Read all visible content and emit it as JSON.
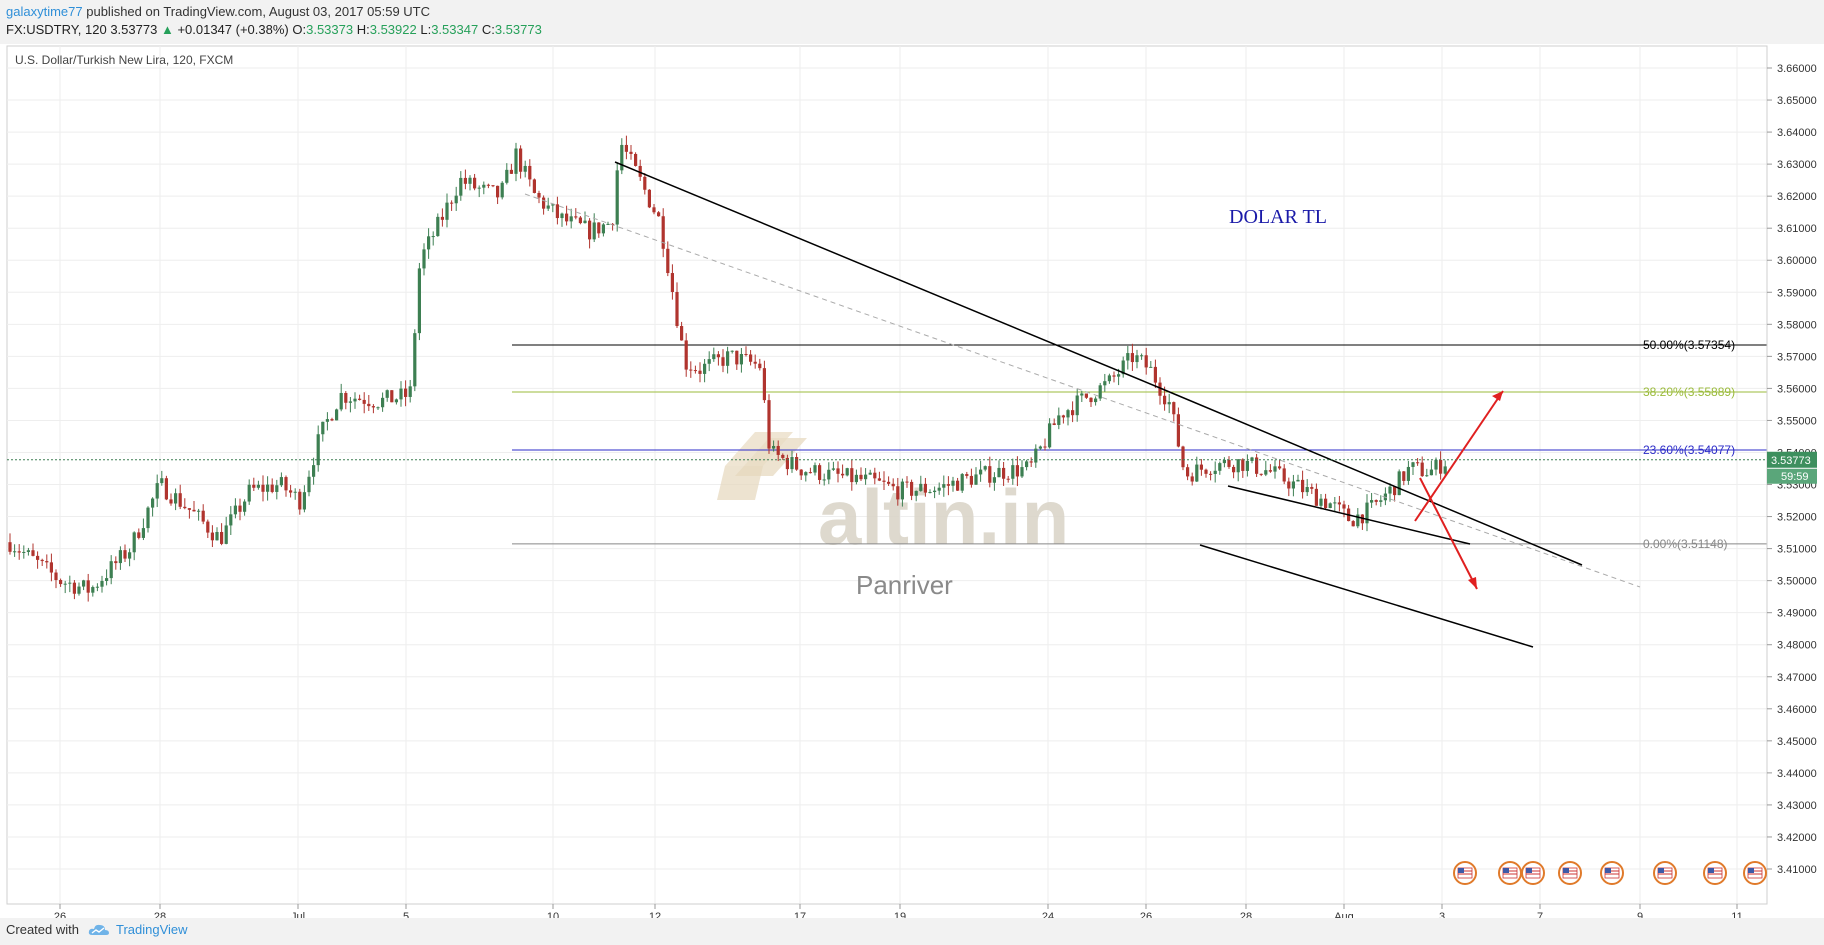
{
  "header": {
    "username": "galaxytime77",
    "published_text": "published on TradingView.com, August 03, 2017 05:59 UTC",
    "symbol_interval": "FX:USDTRY, 120",
    "last_price": "3.53773",
    "change_arrow": "▲",
    "change": "+0.01347 (+0.38%)",
    "open_label": "O:",
    "open": "3.53373",
    "high_label": "H:",
    "high": "3.53922",
    "low_label": "L:",
    "low": "3.53347",
    "close_label": "C:",
    "close": "3.53773"
  },
  "footer": {
    "created_with": "Created with",
    "brand": "TradingView"
  },
  "chart_data": {
    "type": "candlestick",
    "title": "U.S. Dollar/Turkish New Lira, 120, FXCM",
    "annotation_text": "DOLAR TL",
    "watermark_brand": "altin.in",
    "watermark_sub": "Panriver",
    "y_ticks": [
      "3.66000",
      "3.65000",
      "3.64000",
      "3.63000",
      "3.62000",
      "3.61000",
      "3.60000",
      "3.59000",
      "3.58000",
      "3.57000",
      "3.56000",
      "3.55000",
      "3.54000",
      "3.53000",
      "3.52000",
      "3.51000",
      "3.50000",
      "3.49000",
      "3.48000",
      "3.47000",
      "3.46000",
      "3.45000",
      "3.44000",
      "3.43000",
      "3.42000",
      "3.41000"
    ],
    "ylim": [
      3.405,
      3.668
    ],
    "x_ticks": [
      "26",
      "28",
      "Jul",
      "5",
      "10",
      "12",
      "17",
      "19",
      "24",
      "26",
      "28",
      "Aug",
      "3",
      "7",
      "9",
      "11"
    ],
    "last_price_label": "3.53773",
    "countdown_label": "59:59",
    "fib_levels": [
      {
        "label": "50.00%(3.57354)",
        "value": 3.57354,
        "color": "#000000"
      },
      {
        "label": "38.20%(3.55889)",
        "value": 3.55889,
        "color": "#9bbb3b"
      },
      {
        "label": "23.60%(3.54077)",
        "value": 3.54077,
        "color": "#2b2bc8"
      },
      {
        "label": "0.00%(3.51148)",
        "value": 3.51148,
        "color": "#888888"
      }
    ],
    "colors": {
      "up": "#3d7f52",
      "down": "#b0342e",
      "grid": "#eeeeee",
      "fib_50": "#000000",
      "fib_382": "#9bbb3b",
      "fib_236": "#2b2bc8",
      "fib_0": "#888888",
      "arrows": "#e02020",
      "annotation": "#1a1aa8"
    }
  }
}
